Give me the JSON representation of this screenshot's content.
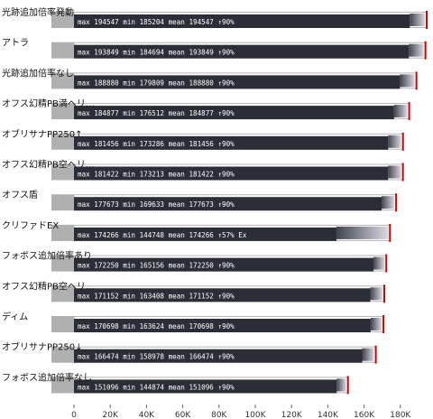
{
  "chart_data": {
    "type": "bar",
    "orientation": "horizontal",
    "rows": [
      {
        "label": "光跡追加倍率発動",
        "max": 194547,
        "min": 185204,
        "mean": 194547,
        "pct": "↑90%",
        "stat_text": "max 194547 min 185204 mean 194547 ↑90%"
      },
      {
        "label": "アトラ",
        "max": 193849,
        "min": 184694,
        "mean": 193849,
        "pct": "↑90%",
        "stat_text": "max 193849 min 184694 mean 193849 ↑90%"
      },
      {
        "label": "光跡追加倍率なし",
        "max": 188880,
        "min": 179809,
        "mean": 188880,
        "pct": "↑90%",
        "stat_text": "max 188880 min 179809 mean 188880 ↑90%"
      },
      {
        "label": "オフス幻精PB満ヘリ…",
        "max": 184877,
        "min": 176512,
        "mean": 184877,
        "pct": "↑90%",
        "stat_text": "max 184877 min 176512 mean 184877 ↑90%"
      },
      {
        "label": "オブリサナPP250↑",
        "max": 181456,
        "min": 173286,
        "mean": 181456,
        "pct": "↑90%",
        "stat_text": "max 181456 min 173286 mean 181456 ↑90%"
      },
      {
        "label": "オフス幻精PB空ヘリ…",
        "max": 181422,
        "min": 173213,
        "mean": 181422,
        "pct": "↑90%",
        "stat_text": "max 181422 min 173213 mean 181422 ↑90%"
      },
      {
        "label": "オフス盾",
        "max": 177673,
        "min": 169633,
        "mean": 177673,
        "pct": "↑90%",
        "stat_text": "max 177673 min 169633 mean 177673 ↑90%"
      },
      {
        "label": "クリファドEX",
        "max": 174266,
        "min": 144748,
        "mean": 174266,
        "pct": "↑57% Ex",
        "stat_text": "max 174266 min 144748 mean 174266 ↑57% Ex"
      },
      {
        "label": "フォボス追加倍率あり",
        "max": 172250,
        "min": 165156,
        "mean": 172250,
        "pct": "↑90%",
        "stat_text": "max 172250 min 165156 mean 172250 ↑90%"
      },
      {
        "label": "オフス幻精PB空ヘリ…",
        "max": 171152,
        "min": 163408,
        "mean": 171152,
        "pct": "↑90%",
        "stat_text": "max 171152 min 163408 mean 171152 ↑90%"
      },
      {
        "label": "ディム",
        "max": 170698,
        "min": 163624,
        "mean": 170698,
        "pct": "↑90%",
        "stat_text": "max 170698 min 163624 mean 170698 ↑90%"
      },
      {
        "label": "オブリサナPP250↓",
        "max": 166474,
        "min": 158978,
        "mean": 166474,
        "pct": "↑90%",
        "stat_text": "max 166474 min 158978 mean 166474 ↑90%"
      },
      {
        "label": "フォボス追加倍率なし",
        "max": 151096,
        "min": 144874,
        "mean": 151096,
        "pct": "↑90%",
        "stat_text": "max 151096 min 144874 mean 151096 ↑90%"
      }
    ],
    "xaxis": {
      "min": 0,
      "max": 190000,
      "ticks": [
        0,
        20000,
        40000,
        60000,
        80000,
        100000,
        120000,
        140000,
        160000,
        180000
      ],
      "tick_labels": [
        "0",
        "20K",
        "40K",
        "60K",
        "80K",
        "100K",
        "120K",
        "140K",
        "160K",
        "180K"
      ]
    },
    "colors": {
      "label_tab": "#b0b0b0",
      "dark_band": "#2b2e36",
      "bar_gradient_start": "#40444d",
      "bar_gradient_end": "#d9dbe0",
      "max_marker": "#d40000",
      "outline": "#b4b4b4"
    },
    "grid": false,
    "legend": "none"
  }
}
